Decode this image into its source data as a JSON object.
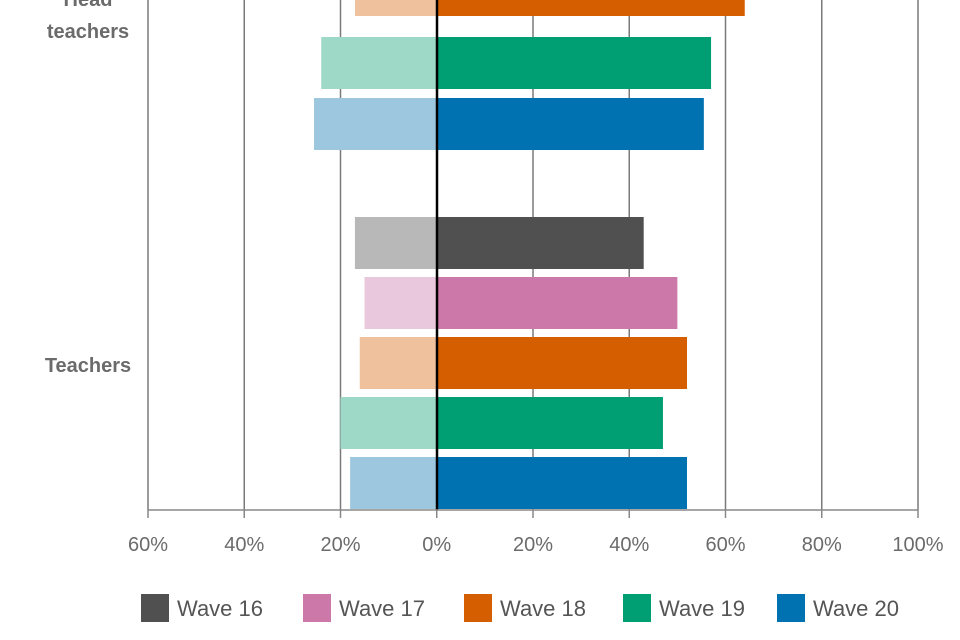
{
  "chart_data": {
    "type": "bar",
    "orientation": "horizontal-diverging",
    "x_ticks": [
      "60%",
      "40%",
      "20%",
      "0%",
      "20%",
      "40%",
      "60%",
      "80%",
      "100%"
    ],
    "xlim": [
      -60,
      100
    ],
    "groups": [
      {
        "label_lines": [
          "Head",
          "teachers"
        ],
        "bars": [
          {
            "series": "Wave 18",
            "negative": 17,
            "positive": 64
          },
          {
            "series": "Wave 19",
            "negative": 24,
            "positive": 57
          },
          {
            "series": "Wave 20",
            "negative": 25.5,
            "positive": 55.5
          }
        ]
      },
      {
        "label_lines": [
          "Teachers"
        ],
        "bars": [
          {
            "series": "Wave 16",
            "negative": 17,
            "positive": 43
          },
          {
            "series": "Wave 17",
            "negative": 15,
            "positive": 50
          },
          {
            "series": "Wave 18",
            "negative": 16,
            "positive": 52
          },
          {
            "series": "Wave 19",
            "negative": 20,
            "positive": 47
          },
          {
            "series": "Wave 20",
            "negative": 18,
            "positive": 52
          }
        ]
      }
    ],
    "series": [
      {
        "name": "Wave 16",
        "color": "#505050",
        "light_color": "#b8b8b8"
      },
      {
        "name": "Wave 17",
        "color": "#cc78a8",
        "light_color": "#e9c8dd"
      },
      {
        "name": "Wave 18",
        "color": "#d55e00",
        "light_color": "#efc19d"
      },
      {
        "name": "Wave 19",
        "color": "#009e73",
        "light_color": "#9ed9c8"
      },
      {
        "name": "Wave 20",
        "color": "#0072b2",
        "light_color": "#9cc7de"
      }
    ],
    "legend_position": "bottom",
    "grid": true
  }
}
